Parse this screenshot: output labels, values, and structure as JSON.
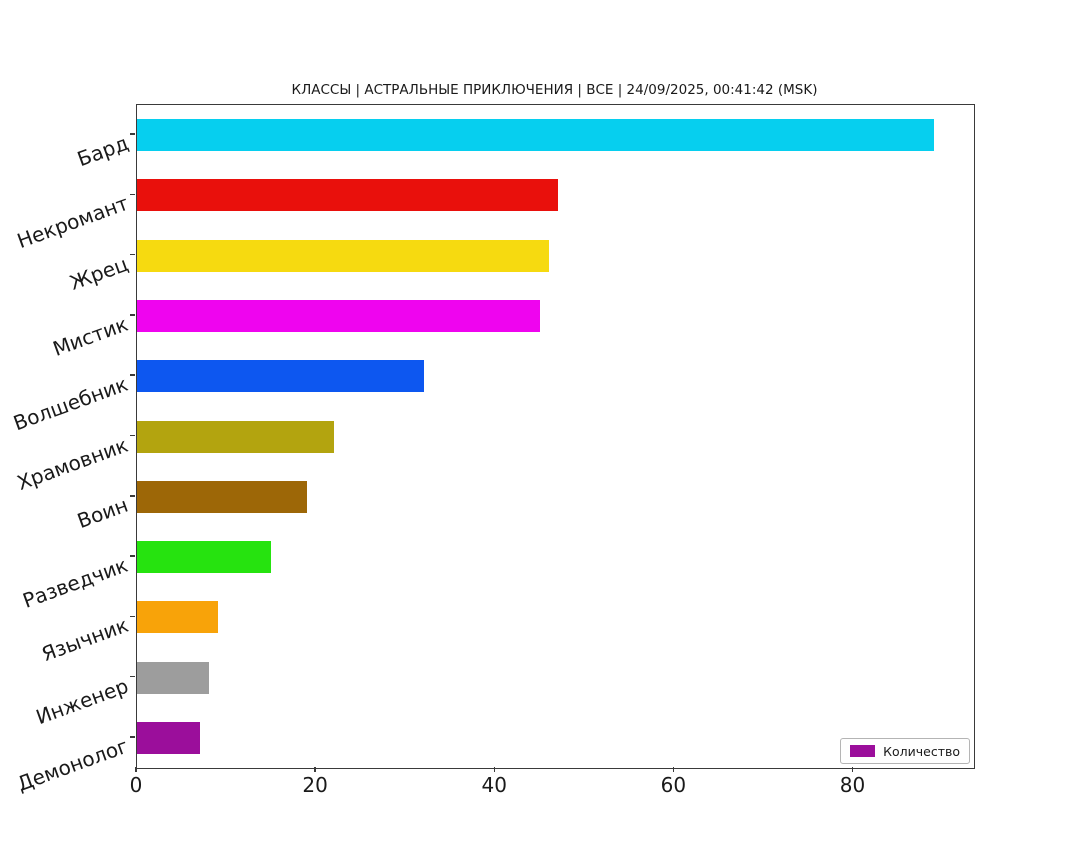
{
  "figure_title": "КЛАССЫ | АСТРАЛЬНЫЕ ПРИКЛЮЧЕНИЯ | ВСЕ | 24/09/2025, 00:41:42 (MSK)",
  "legend": {
    "label": "Количество",
    "swatch_color": "#9b0e9b",
    "position": "lower right"
  },
  "chart_data": {
    "type": "bar",
    "orientation": "horizontal",
    "title": "КЛАССЫ | АСТРАЛЬНЫЕ ПРИКЛЮЧЕНИЯ | ВСЕ | 24/09/2025, 00:41:42 (MSK)",
    "categories": [
      "Бард",
      "Некромант",
      "Жрец",
      "Мистик",
      "Волшебник",
      "Храмовник",
      "Воин",
      "Разведчик",
      "Язычник",
      "Инженер",
      "Демонолог"
    ],
    "series": [
      {
        "name": "Количество",
        "values": [
          89,
          47,
          46,
          45,
          32,
          22,
          19,
          15,
          9,
          8,
          7
        ]
      }
    ],
    "bar_colors": [
      "#06cfef",
      "#e9100c",
      "#f6da10",
      "#ef04ef",
      "#0d57f0",
      "#b3a40f",
      "#9d6707",
      "#26e30f",
      "#f8a309",
      "#9d9d9d",
      "#9b0e9b"
    ],
    "xlabel": "",
    "ylabel": "",
    "xlim": [
      0,
      93.45
    ],
    "xticks": [
      0,
      20,
      40,
      60,
      80
    ],
    "grid": false,
    "legend_position": "lower right",
    "background_color": "#ffffff"
  }
}
